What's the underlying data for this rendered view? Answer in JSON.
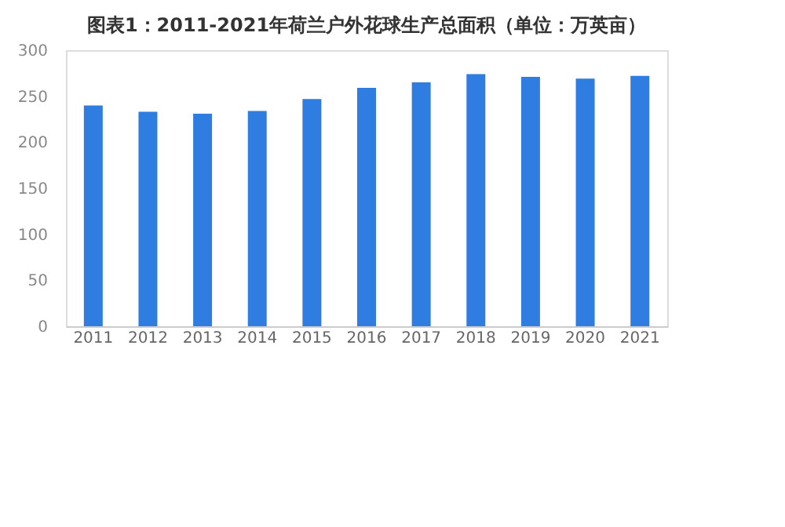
{
  "chart_data": {
    "type": "bar",
    "title": "图表1：2011-2021年荷兰户外花球生产总面积（单位：万英亩）",
    "categories": [
      "2011",
      "2012",
      "2013",
      "2014",
      "2015",
      "2016",
      "2017",
      "2018",
      "2019",
      "2020",
      "2021"
    ],
    "values": [
      240,
      233,
      231,
      234,
      247,
      259,
      265,
      274,
      271,
      269,
      272
    ],
    "color": "#2f7de1",
    "ylim": [
      0,
      300
    ],
    "yticks": [
      0,
      50,
      100,
      150,
      200,
      250,
      300
    ],
    "grid": false
  }
}
